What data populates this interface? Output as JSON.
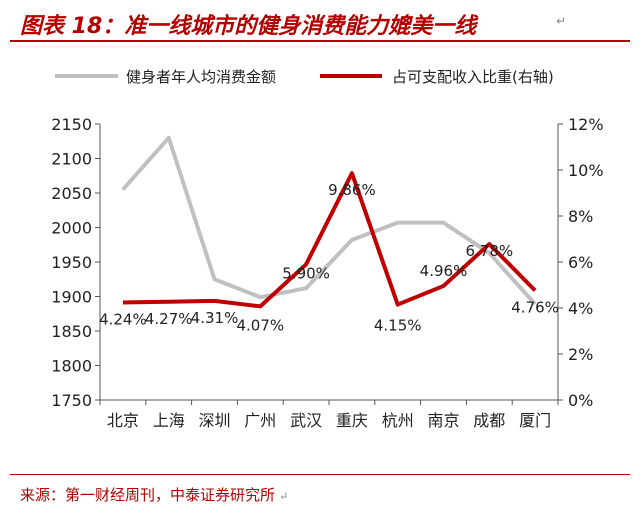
{
  "header": {
    "title": "图表 18：准一线城市的健身消费能力媲美一线",
    "paragraph_mark": "↵"
  },
  "footer": {
    "source": "来源：第一财经周刊，中泰证券研究所",
    "paragraph_mark": "↵"
  },
  "chart_data": {
    "type": "line",
    "categories": [
      "北京",
      "上海",
      "深圳",
      "广州",
      "武汉",
      "重庆",
      "杭州",
      "南京",
      "成都",
      "厦门"
    ],
    "series": [
      {
        "name": "健身者年人均消费金额",
        "axis": "left",
        "color": "#c0c0c0",
        "values": [
          2055,
          2130,
          1925,
          1899,
          1912,
          1982,
          2007,
          2007,
          1963,
          1889
        ]
      },
      {
        "name": "占可支配收入比重(右轴)",
        "axis": "right",
        "color": "#c00000",
        "values": [
          4.24,
          4.27,
          4.31,
          4.07,
          5.9,
          9.86,
          4.15,
          4.96,
          6.78,
          4.76
        ],
        "labels": [
          "4.24%",
          "4.27%",
          "4.31%",
          "4.07%",
          "5.90%",
          "9.86%",
          "4.15%",
          "4.96%",
          "6.78%",
          "4.76%"
        ]
      }
    ],
    "y_left": {
      "min": 1750,
      "max": 2150,
      "ticks": [
        1750,
        1800,
        1850,
        1900,
        1950,
        2000,
        2050,
        2100,
        2150
      ]
    },
    "y_right": {
      "min": 0,
      "max": 12,
      "ticks": [
        "0%",
        "2%",
        "4%",
        "6%",
        "8%",
        "10%",
        "12%"
      ]
    },
    "legend_position": "top",
    "grid": false
  }
}
